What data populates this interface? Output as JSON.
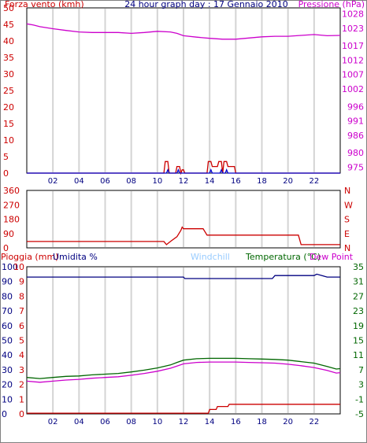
{
  "chart_data": [
    {
      "type": "line",
      "title": "24 hour graph day : 17 Gennaio 2010",
      "left_axis_label": "Forza vento (kmh)",
      "right_axis_label": "Pressione (hPa)",
      "x_ticks": [
        "02",
        "04",
        "06",
        "08",
        "10",
        "12",
        "14",
        "16",
        "18",
        "20",
        "22"
      ],
      "xlim": [
        0,
        24
      ],
      "left_ylim": [
        0,
        50
      ],
      "left_ticks": [
        0,
        5,
        10,
        15,
        20,
        25,
        30,
        35,
        40,
        45,
        50
      ],
      "right_ylim": [
        973,
        1030
      ],
      "right_ticks": [
        975,
        980,
        986,
        991,
        996,
        1002,
        1007,
        1012,
        1017,
        1023,
        1028
      ],
      "grid": true,
      "colors": {
        "wind": "#cc0000",
        "gust": "#0000cc",
        "pressure": "#cc00cc"
      },
      "series": [
        {
          "axis": "right",
          "color": "#cc00cc",
          "x": [
            0,
            0.5,
            1,
            2,
            3,
            4,
            5,
            6,
            7,
            8,
            9,
            10,
            11,
            11.5,
            12,
            13,
            14,
            15,
            16,
            17,
            18,
            19,
            20,
            21,
            22,
            23,
            24
          ],
          "values": [
            1024.5,
            1024.1,
            1023.5,
            1022.8,
            1022.2,
            1021.7,
            1021.5,
            1021.5,
            1021.5,
            1021.2,
            1021.5,
            1021.9,
            1021.7,
            1021.2,
            1020.4,
            1019.9,
            1019.5,
            1019.2,
            1019.2,
            1019.6,
            1020.0,
            1020.2,
            1020.2,
            1020.5,
            1020.8,
            1020.4,
            1020.5
          ]
        },
        {
          "axis": "left",
          "color": "#cc0000",
          "x": [
            0,
            10.5,
            10.6,
            10.8,
            10.9,
            11.4,
            11.5,
            11.7,
            11.8,
            11.9,
            12,
            12.1,
            13.8,
            13.9,
            14.1,
            14.2,
            14.6,
            14.7,
            14.9,
            15,
            15.1,
            15.3,
            15.4,
            15.9,
            16,
            24
          ],
          "values": [
            0,
            0,
            3.5,
            3.5,
            0,
            0,
            2,
            2,
            0,
            1,
            1,
            0,
            0,
            3.5,
            3.5,
            2,
            2,
            3.5,
            3.5,
            0,
            3.5,
            3.5,
            2,
            2,
            0,
            0
          ]
        },
        {
          "axis": "left",
          "color": "#0000cc",
          "x": [
            0,
            10.7,
            10.8,
            10.9,
            11.5,
            11.6,
            11.7,
            14,
            14.1,
            14.2,
            14.8,
            14.9,
            15,
            15.2,
            15.3,
            15.4,
            24
          ],
          "values": [
            0,
            0,
            1,
            0,
            0,
            1,
            0,
            0,
            1,
            0,
            0,
            1,
            0,
            0,
            1,
            0,
            0
          ]
        }
      ]
    },
    {
      "type": "line",
      "left_ticks": [
        0,
        90,
        180,
        270,
        360
      ],
      "right_tick_labels": [
        "N",
        "E",
        "S",
        "W",
        "N"
      ],
      "ylim": [
        0,
        360
      ],
      "xlim": [
        0,
        24
      ],
      "grid": true,
      "series": [
        {
          "color": "#cc0000",
          "x": [
            0,
            10.5,
            10.7,
            11,
            11.5,
            11.8,
            11.9,
            12,
            13.5,
            13.8,
            20.8,
            21,
            24
          ],
          "values": [
            40,
            40,
            20,
            40,
            70,
            110,
            130,
            120,
            120,
            80,
            80,
            20,
            20
          ]
        }
      ]
    },
    {
      "type": "line",
      "left_axis_label_1": "Pioggia (mm)",
      "left_axis_label_2": "Umidita %",
      "center_axis_label": "Windchill",
      "right_axis_label_1": "Temperatura (°C)",
      "right_axis_label_2": "Dew Point",
      "rain_ticks": [
        0,
        1,
        2,
        3,
        4,
        5,
        6,
        7,
        8,
        9,
        10
      ],
      "humidity_ticks": [
        0,
        10,
        20,
        30,
        40,
        50,
        60,
        70,
        80,
        90,
        100
      ],
      "temp_ticks": [
        -5,
        -1,
        3,
        7,
        11,
        15,
        19,
        23,
        27,
        31,
        35
      ],
      "temp_ylim": [
        -5,
        35
      ],
      "humidity_ylim": [
        0,
        100
      ],
      "rain_ylim": [
        0,
        10
      ],
      "xlim": [
        0,
        24
      ],
      "grid": true,
      "colors": {
        "rain": "#cc0000",
        "humidity": "#000080",
        "temperature": "#006600",
        "dewpoint": "#cc00cc",
        "windchill": "#99ccff"
      },
      "series": [
        {
          "axis": "humidity",
          "color": "#000080",
          "x": [
            0,
            12,
            12.1,
            18.8,
            19,
            20,
            22,
            22.2,
            22.6,
            23,
            24
          ],
          "values": [
            93,
            93,
            92,
            92,
            94,
            94,
            94,
            95,
            94,
            93,
            93
          ]
        },
        {
          "axis": "temperature",
          "color": "#006600",
          "x": [
            0,
            1,
            2,
            3,
            4,
            5,
            6,
            7,
            8,
            9,
            10,
            11,
            11.5,
            12,
            13,
            14,
            15,
            16,
            17,
            18,
            19,
            20,
            21,
            22,
            23,
            23.7,
            24
          ],
          "values": [
            4.9,
            4.6,
            4.9,
            5.2,
            5.3,
            5.6,
            5.8,
            6.0,
            6.4,
            6.9,
            7.5,
            8.3,
            9.0,
            9.6,
            10.0,
            10.1,
            10.1,
            10.1,
            10.0,
            9.9,
            9.8,
            9.6,
            9.2,
            8.8,
            7.9,
            7.2,
            7.3
          ]
        },
        {
          "axis": "temperature",
          "color": "#cc00cc",
          "x": [
            0,
            1,
            2,
            3,
            4,
            5,
            6,
            7,
            8,
            9,
            10,
            11,
            11.5,
            12,
            13,
            14,
            15,
            16,
            17,
            18,
            19,
            20,
            21,
            22,
            23,
            23.7,
            24
          ],
          "values": [
            3.9,
            3.6,
            3.9,
            4.2,
            4.4,
            4.7,
            4.9,
            5.1,
            5.5,
            6.0,
            6.6,
            7.4,
            8.0,
            8.6,
            9.0,
            9.1,
            9.1,
            9.1,
            9.0,
            8.9,
            8.8,
            8.5,
            8.1,
            7.6,
            6.8,
            6.1,
            6.2
          ]
        },
        {
          "axis": "rain",
          "color": "#cc0000",
          "x": [
            0,
            13.9,
            14,
            14.5,
            14.6,
            15.4,
            15.5,
            24
          ],
          "values": [
            0.05,
            0.05,
            0.3,
            0.3,
            0.5,
            0.5,
            0.65,
            0.65
          ]
        }
      ]
    }
  ]
}
